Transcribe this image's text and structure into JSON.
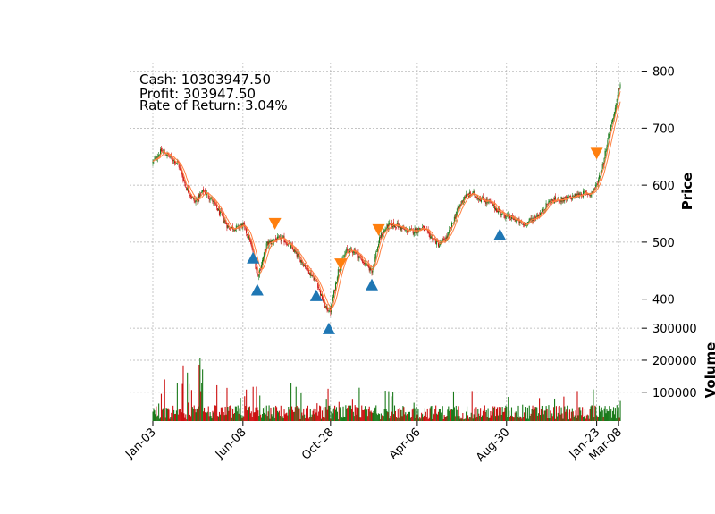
{
  "chart_data": [
    {
      "type": "candlestick",
      "panel": "price",
      "ylabel": "Price",
      "ylim": [
        365,
        815
      ],
      "yticks": [
        400,
        500,
        600,
        700,
        800
      ],
      "grid": true,
      "x_tick_labels": [
        "Jan-03",
        "Jun-08",
        "Oct-28",
        "Apr-06",
        "Aug-30",
        "Jan-23",
        "Mar-08"
      ],
      "x_tick_positions": [
        0,
        107,
        211,
        314,
        420,
        527,
        553
      ],
      "x_count": 556,
      "series": [
        {
          "name": "",
          "kind": "close",
          "x": [
            0,
            10,
            20,
            30,
            40,
            50,
            60,
            70,
            80,
            90,
            100,
            107,
            115,
            120,
            125,
            135,
            145,
            155,
            165,
            175,
            185,
            195,
            200,
            205,
            211,
            220,
            230,
            240,
            250,
            260,
            270,
            280,
            290,
            300,
            310,
            320,
            330,
            340,
            350,
            360,
            370,
            380,
            390,
            400,
            410,
            420,
            430,
            440,
            450,
            460,
            470,
            480,
            490,
            500,
            510,
            520,
            527,
            535,
            540,
            545,
            550,
            555
          ],
          "y": [
            640,
            660,
            650,
            638,
            595,
            570,
            590,
            575,
            550,
            525,
            525,
            530,
            505,
            470,
            440,
            495,
            505,
            505,
            490,
            470,
            450,
            430,
            405,
            385,
            380,
            450,
            485,
            485,
            465,
            450,
            510,
            530,
            530,
            520,
            520,
            525,
            510,
            495,
            510,
            550,
            580,
            585,
            575,
            570,
            555,
            545,
            540,
            530,
            540,
            550,
            570,
            575,
            575,
            580,
            585,
            585,
            600,
            640,
            680,
            710,
            740,
            780
          ]
        },
        {
          "name": "",
          "kind": "moving-average",
          "x": [],
          "y": []
        }
      ],
      "markers": {
        "buy": [
          {
            "x": 119,
            "y": 472
          },
          {
            "x": 124,
            "y": 416
          },
          {
            "x": 194,
            "y": 406
          },
          {
            "x": 209,
            "y": 348
          },
          {
            "x": 260,
            "y": 425
          },
          {
            "x": 412,
            "y": 513
          }
        ],
        "sell": [
          {
            "x": 145,
            "y": 533
          },
          {
            "x": 223,
            "y": 462
          },
          {
            "x": 268,
            "y": 522
          },
          {
            "x": 527,
            "y": 656
          }
        ]
      },
      "colors": {
        "up": "#1a7a1a",
        "down": "#cc1111",
        "ma": "#ff7f3f",
        "buy": "#1f77b4",
        "sell": "#ff7f0e"
      }
    },
    {
      "type": "bar",
      "panel": "volume",
      "ylabel": "Volume",
      "ylim": [
        10000,
        320000
      ],
      "yticks": [
        100000,
        200000,
        300000
      ],
      "grid": true,
      "colors": {
        "up": "#1a7a1a",
        "down": "#cc1111"
      }
    }
  ],
  "annotations": {
    "cash": "Cash: 10303947.50",
    "profit": "Profit: 303947.50",
    "rate_of_return": "Rate of Return: 3.04%"
  }
}
